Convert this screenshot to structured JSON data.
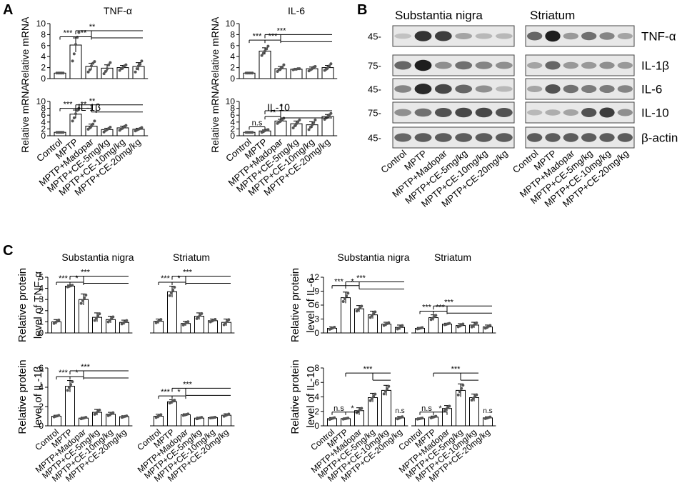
{
  "panel_letters": [
    "A",
    "B",
    "C"
  ],
  "groups": [
    "Control",
    "MPTP",
    "MPTP+Madopar",
    "MPTP+CE-5mg/kg",
    "MPTP+CE-10mg/kg",
    "MPTP+CE-20mg/kg"
  ],
  "colors": {
    "bar_fill": "#ffffff",
    "stroke": "#000000",
    "blot_bg": "#e8e8e8",
    "band": "#1c1c1c"
  },
  "chart_data": [
    {
      "id": "tnf-mrna",
      "type": "bar",
      "title": "TNF-α",
      "ylabel": "Relative mRNA",
      "categories": [
        "Control",
        "MPTP",
        "MPTP+Madopar",
        "MPTP+CE-5mg/kg",
        "MPTP+CE-10mg/kg",
        "MPTP+CE-20mg/kg"
      ],
      "values": [
        1.0,
        6.1,
        2.2,
        1.9,
        2.0,
        2.2
      ],
      "errors": [
        0.05,
        1.3,
        0.6,
        0.6,
        0.4,
        0.7
      ],
      "ylim": [
        0,
        10
      ],
      "yticks": [
        0,
        2,
        4,
        6,
        8,
        10
      ],
      "points": [
        [
          1.0,
          1.0,
          1.0,
          1.0,
          1.0
        ],
        [
          3.2,
          4.5,
          6.2,
          7.5,
          8.4
        ],
        [
          1.2,
          1.6,
          2.3,
          2.8,
          3.1
        ],
        [
          0.9,
          1.3,
          1.8,
          2.5,
          2.9
        ],
        [
          1.5,
          1.8,
          2.0,
          2.3,
          2.5
        ],
        [
          1.2,
          1.8,
          2.3,
          2.6,
          3.2
        ]
      ],
      "annotations": [
        {
          "text": "***",
          "from": 0,
          "to": 1,
          "level": 7.6
        },
        {
          "text": "**",
          "from": 1,
          "to": 2,
          "level": 7.6
        },
        {
          "text": "**",
          "from": 1,
          "to": 5,
          "level": 8.7,
          "span_from": 2
        }
      ]
    },
    {
      "id": "il6-mrna",
      "type": "bar",
      "title": "IL-6",
      "ylabel": "Relative mRNA",
      "categories": [
        "Control",
        "MPTP",
        "MPTP+Madopar",
        "MPTP+CE-5mg/kg",
        "MPTP+CE-10mg/kg",
        "MPTP+CE-20mg/kg"
      ],
      "values": [
        1.0,
        5.0,
        1.8,
        1.7,
        1.8,
        2.0
      ],
      "errors": [
        0.05,
        0.6,
        0.4,
        0.1,
        0.3,
        0.4
      ],
      "ylim": [
        0,
        10
      ],
      "yticks": [
        0,
        2,
        4,
        6,
        8,
        10
      ],
      "points": [
        [
          1.0,
          1.0,
          1.0,
          1.0,
          1.0
        ],
        [
          4.2,
          4.6,
          5.0,
          5.4,
          5.9
        ],
        [
          1.3,
          1.6,
          1.8,
          2.1,
          2.5
        ],
        [
          1.6,
          1.7,
          1.7,
          1.8,
          1.8
        ],
        [
          1.4,
          1.6,
          1.8,
          2.1,
          2.2
        ],
        [
          1.5,
          1.7,
          2.0,
          2.3,
          2.7
        ]
      ],
      "annotations": [
        {
          "text": "***",
          "from": 0,
          "to": 1,
          "level": 7.0
        },
        {
          "text": "***",
          "from": 1,
          "to": 2,
          "level": 7.0
        },
        {
          "text": "***",
          "from": 1,
          "to": 5,
          "level": 8.0,
          "span_from": 2
        }
      ]
    },
    {
      "id": "il1b-mrna",
      "type": "bar",
      "title": "IL-1β",
      "ylabel": "Relative mRNA",
      "categories": [
        "Control",
        "MPTP",
        "MPTP+Madopar",
        "MPTP+CE-5mg/kg",
        "MPTP+CE-10mg/kg",
        "MPTP+CE-20mg/kg"
      ],
      "values": [
        1.0,
        6.3,
        2.8,
        1.8,
        2.3,
        1.9
      ],
      "errors": [
        0.05,
        1.2,
        0.6,
        0.4,
        0.5,
        0.3
      ],
      "ylim": [
        0,
        10
      ],
      "yticks": [
        0,
        2,
        4,
        6,
        8,
        10
      ],
      "points": [
        [
          1.0,
          1.0,
          1.0,
          1.0,
          1.0
        ],
        [
          4.3,
          5.2,
          6.4,
          7.4,
          8.0
        ],
        [
          1.9,
          2.3,
          2.8,
          3.4,
          4.3
        ],
        [
          1.1,
          1.5,
          1.8,
          2.1,
          2.5
        ],
        [
          1.6,
          2.0,
          2.3,
          2.7,
          3.0
        ],
        [
          1.4,
          1.7,
          1.9,
          2.1,
          2.4
        ]
      ],
      "annotations": [
        {
          "text": "***",
          "from": 0,
          "to": 1,
          "level": 8.0
        },
        {
          "text": "**",
          "from": 1,
          "to": 2,
          "level": 8.0
        },
        {
          "text": "**",
          "from": 1,
          "to": 5,
          "level": 9.0,
          "span_from": 2
        }
      ]
    },
    {
      "id": "il10-mrna",
      "type": "bar",
      "title": "IL-10",
      "ylabel": "Relative mRNA",
      "categories": [
        "Control",
        "MPTP",
        "MPTP+Madopar",
        "MPTP+CE-5mg/kg",
        "MPTP+CE-10mg/kg",
        "MPTP+CE-20mg/kg"
      ],
      "values": [
        1.0,
        1.4,
        4.3,
        3.5,
        3.2,
        5.6
      ],
      "errors": [
        0.05,
        0.3,
        0.5,
        0.8,
        0.9,
        0.6
      ],
      "ylim": [
        0,
        10
      ],
      "yticks": [
        0,
        2,
        4,
        6,
        8,
        10
      ],
      "points": [
        [
          1.0,
          1.0,
          1.0,
          1.0,
          1.0
        ],
        [
          1.0,
          1.2,
          1.5,
          1.7,
          1.8
        ],
        [
          3.6,
          4.0,
          4.3,
          4.7,
          5.1
        ],
        [
          2.3,
          2.9,
          3.5,
          4.1,
          4.6
        ],
        [
          1.8,
          2.5,
          3.1,
          3.8,
          4.6
        ],
        [
          4.8,
          5.2,
          5.6,
          6.1,
          6.5
        ]
      ],
      "annotations": [
        {
          "text": "n.s",
          "from": 0,
          "to": 1,
          "level": 2.6
        },
        {
          "text": "**",
          "from": 1,
          "to": 2,
          "level": 5.6
        },
        {
          "text": "*",
          "from": 1,
          "to": 5,
          "level": 7.3,
          "span_from": 2
        }
      ]
    },
    {
      "id": "tnf-protein",
      "type": "bar",
      "ylabel": "Relative protein level of TNF-α",
      "panels": [
        "Substantia nigra",
        "Striatum"
      ],
      "categories": [
        "Control",
        "MPTP",
        "MPTP+Madopar",
        "MPTP+CE-5mg/kg",
        "MPTP+CE-10mg/kg",
        "MPTP+CE-20mg/kg"
      ],
      "values_sn": [
        1.0,
        4.2,
        3.0,
        1.4,
        1.2,
        0.95
      ],
      "errors_sn": [
        0.2,
        0.1,
        0.5,
        0.4,
        0.3,
        0.2
      ],
      "values_st": [
        1.05,
        3.7,
        0.85,
        1.5,
        1.1,
        0.95
      ],
      "errors_st": [
        0.2,
        0.5,
        0.2,
        0.3,
        0.15,
        0.3
      ],
      "ylim": [
        0,
        5
      ],
      "yticks": [
        0,
        1,
        2,
        3,
        4,
        5
      ],
      "annotations_sn": [
        {
          "text": "***",
          "from": 0,
          "to": 1,
          "level": 4.55
        },
        {
          "text": "*",
          "from": 1,
          "to": 2,
          "level": 4.55
        },
        {
          "text": "***",
          "from": 1,
          "to": 5,
          "level": 5.1,
          "span_from": 2
        }
      ],
      "annotations_st": [
        {
          "text": "***",
          "from": 0,
          "to": 1,
          "level": 4.55
        },
        {
          "text": "*",
          "from": 1,
          "to": 2,
          "level": 4.55
        },
        {
          "text": "***",
          "from": 1,
          "to": 5,
          "level": 5.1,
          "span_from": 2
        }
      ]
    },
    {
      "id": "il6-protein",
      "type": "bar",
      "ylabel": "Relative protein level of IL-6",
      "panels": [
        "Substantia nigra",
        "Striatum"
      ],
      "categories": [
        "Control",
        "MPTP",
        "MPTP+Madopar",
        "MPTP+CE-5mg/kg",
        "MPTP+CE-10mg/kg",
        "MPTP+CE-20mg/kg"
      ],
      "values_sn": [
        1.0,
        7.6,
        5.2,
        3.9,
        1.9,
        1.2
      ],
      "errors_sn": [
        0.3,
        1.2,
        0.7,
        0.8,
        0.4,
        0.5
      ],
      "values_st": [
        1.0,
        3.3,
        1.9,
        1.6,
        1.7,
        1.3
      ],
      "errors_st": [
        0.2,
        0.6,
        0.2,
        0.4,
        0.6,
        0.4
      ],
      "ylim": [
        0,
        12
      ],
      "yticks": [
        0,
        3,
        6,
        9,
        12
      ],
      "annotations_sn": [
        {
          "text": "***",
          "from": 0,
          "to": 1,
          "level": 10.2
        },
        {
          "text": "*",
          "from": 1,
          "to": 2,
          "level": 10.2
        },
        {
          "text": "***",
          "from": 1,
          "to": 5,
          "level": 11.0,
          "span_from": 2
        }
      ],
      "annotations_st": [
        {
          "text": "***",
          "from": 0,
          "to": 1,
          "level": 4.7
        },
        {
          "text": "***",
          "from": 1,
          "to": 2,
          "level": 4.7
        },
        {
          "text": "***",
          "from": 1,
          "to": 5,
          "level": 5.8,
          "span_from": 2
        }
      ]
    },
    {
      "id": "il1b-protein",
      "type": "bar",
      "ylabel": "Relative protein level of IL-1β",
      "panels": [
        "Substantia nigra",
        "Striatum"
      ],
      "categories": [
        "Control",
        "MPTP",
        "MPTP+Madopar",
        "MPTP+CE-5mg/kg",
        "MPTP+CE-10mg/kg",
        "MPTP+CE-20mg/kg"
      ],
      "values_sn": [
        1.0,
        4.1,
        0.8,
        1.4,
        1.2,
        0.95
      ],
      "errors_sn": [
        0.1,
        0.6,
        0.1,
        0.3,
        0.2,
        0.1
      ],
      "values_st": [
        1.0,
        2.5,
        1.15,
        0.8,
        0.85,
        1.1
      ],
      "errors_st": [
        0.2,
        0.2,
        0.1,
        0.1,
        0.05,
        0.15
      ],
      "ylim": [
        0,
        6
      ],
      "yticks": [
        0,
        2,
        4,
        6
      ],
      "annotations_sn": [
        {
          "text": "***",
          "from": 0,
          "to": 1,
          "level": 5.1
        },
        {
          "text": "*",
          "from": 1,
          "to": 2,
          "level": 5.1
        },
        {
          "text": "***",
          "from": 1,
          "to": 5,
          "level": 5.7,
          "span_from": 2
        }
      ],
      "annotations_st": [
        {
          "text": "***",
          "from": 0,
          "to": 1,
          "level": 3.1
        },
        {
          "text": "*",
          "from": 1,
          "to": 2,
          "level": 3.1
        },
        {
          "text": "***",
          "from": 1,
          "to": 5,
          "level": 3.9,
          "span_from": 2
        }
      ]
    },
    {
      "id": "il10-protein",
      "type": "bar",
      "ylabel": "Relative protein level of IL-10",
      "panels": [
        "Substantia nigra",
        "Striatum"
      ],
      "categories": [
        "Control",
        "MPTP",
        "MPTP+Madopar",
        "MPTP+CE-5mg/kg",
        "MPTP+CE-10mg/kg",
        "MPTP+CE-20mg/kg"
      ],
      "values_sn": [
        1.0,
        1.0,
        2.1,
        3.9,
        4.9,
        1.1
      ],
      "errors_sn": [
        0.15,
        0.1,
        0.4,
        0.6,
        0.7,
        0.2
      ],
      "values_st": [
        1.0,
        1.2,
        2.4,
        4.9,
        3.9,
        1.1
      ],
      "errors_st": [
        0.1,
        0.15,
        0.4,
        0.9,
        0.5,
        0.15
      ],
      "ylim": [
        0,
        8
      ],
      "yticks": [
        0,
        2,
        4,
        6,
        8
      ],
      "annotations_sn": [
        {
          "text": "n.s",
          "from": 0,
          "to": 1,
          "level": 1.9
        },
        {
          "text": "*",
          "from": 1,
          "to": 2,
          "level": 1.9
        },
        {
          "text": "***",
          "from": 1,
          "to": 4,
          "level": 7.3,
          "span_from": 3
        },
        {
          "text": "n.s",
          "from": 5,
          "to": 5,
          "level": 1.8
        }
      ],
      "annotations_st": [
        {
          "text": "n.s",
          "from": 0,
          "to": 1,
          "level": 1.9
        },
        {
          "text": "*",
          "from": 1,
          "to": 2,
          "level": 1.9
        },
        {
          "text": "***",
          "from": 1,
          "to": 4,
          "level": 7.3,
          "span_from": 3
        },
        {
          "text": "n.s",
          "from": 5,
          "to": 5,
          "level": 1.8
        }
      ]
    }
  ],
  "blot": {
    "regions": [
      "Substantia nigra",
      "Striatum"
    ],
    "rows": [
      {
        "marker": "45-",
        "label": "TNF-α",
        "sn": [
          0.15,
          0.85,
          0.8,
          0.3,
          0.2,
          0.2
        ],
        "st": [
          0.6,
          0.95,
          0.35,
          0.55,
          0.45,
          0.3
        ]
      },
      {
        "marker": "75-",
        "label": "IL-1β",
        "sn": [
          0.6,
          0.95,
          0.4,
          0.55,
          0.45,
          0.4
        ],
        "st": [
          0.3,
          0.6,
          0.35,
          0.35,
          0.4,
          0.35
        ]
      },
      {
        "marker": "45-",
        "label": "IL-6",
        "sn": [
          0.45,
          0.9,
          0.75,
          0.6,
          0.4,
          0.2
        ],
        "st": [
          0.3,
          0.7,
          0.55,
          0.5,
          0.5,
          0.45
        ]
      },
      {
        "marker": "75-",
        "label": "IL-10",
        "sn": [
          0.4,
          0.55,
          0.7,
          0.75,
          0.75,
          0.7
        ],
        "st": [
          0.2,
          0.25,
          0.3,
          0.7,
          0.8,
          0.4
        ]
      },
      {
        "marker": "45-",
        "label": "β-actin",
        "sn": [
          0.6,
          0.65,
          0.65,
          0.65,
          0.65,
          0.65
        ],
        "st": [
          0.65,
          0.65,
          0.65,
          0.65,
          0.65,
          0.65
        ]
      }
    ]
  }
}
